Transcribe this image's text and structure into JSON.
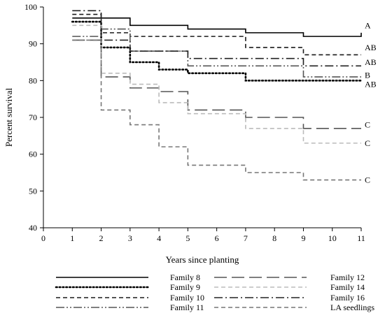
{
  "chart_data": {
    "type": "line",
    "step": true,
    "xlabel": "Years since planting",
    "ylabel": "Percent survival",
    "xlim": [
      0,
      11
    ],
    "ylim": [
      40,
      100
    ],
    "xticks": [
      0,
      1,
      2,
      3,
      4,
      5,
      6,
      7,
      8,
      9,
      10,
      11
    ],
    "yticks": [
      40,
      50,
      60,
      70,
      80,
      90,
      100
    ],
    "grid": false,
    "legend_position": "bottom",
    "series": [
      {
        "name": "Family 8",
        "color": "#000000",
        "style": "solid",
        "x": [
          1,
          3,
          5,
          7,
          9,
          11
        ],
        "y": [
          97,
          95,
          94,
          93,
          92,
          93
        ],
        "group": "A"
      },
      {
        "name": "Family 9",
        "color": "#000000",
        "style": "dotted",
        "x": [
          1,
          2,
          3,
          4,
          5,
          7,
          9,
          11
        ],
        "y": [
          96,
          89,
          85,
          83,
          82,
          80,
          80,
          80
        ],
        "group": "AB"
      },
      {
        "name": "Family 10",
        "color": "#1a1a1a",
        "style": "dashed",
        "x": [
          1,
          2,
          3,
          4,
          5,
          7,
          9,
          11
        ],
        "y": [
          98,
          93,
          92,
          92,
          92,
          89,
          87,
          87
        ],
        "group": "AB"
      },
      {
        "name": "Family 11",
        "color": "#555555",
        "style": "dashdotdot",
        "x": [
          1,
          2,
          3,
          5,
          9,
          11
        ],
        "y": [
          92,
          94,
          88,
          84,
          81,
          81
        ],
        "group": "B"
      },
      {
        "name": "Family 12",
        "color": "#555555",
        "style": "longdash",
        "x": [
          1,
          2,
          3,
          4,
          5,
          7,
          9,
          11
        ],
        "y": [
          91,
          81,
          78,
          77,
          72,
          70,
          67,
          67
        ],
        "group": "C"
      },
      {
        "name": "Family 14",
        "color": "#bbbbbb",
        "style": "dashed",
        "x": [
          1,
          2,
          3,
          4,
          5,
          7,
          9,
          11
        ],
        "y": [
          95,
          82,
          79,
          74,
          71,
          67,
          63,
          63
        ],
        "group": "C"
      },
      {
        "name": "Family 16",
        "color": "#222222",
        "style": "dashdot",
        "x": [
          1,
          2,
          3,
          5,
          9,
          11
        ],
        "y": [
          99,
          91,
          88,
          86,
          84,
          84
        ],
        "group": "AB"
      },
      {
        "name": "LA seedlings",
        "color": "#777777",
        "style": "dashed",
        "x": [
          1,
          2,
          3,
          4,
          5,
          7,
          9,
          11
        ],
        "y": [
          91,
          72,
          68,
          62,
          57,
          55,
          53,
          53
        ],
        "group": "C"
      }
    ],
    "annotations": [
      {
        "text": "A",
        "x": 11,
        "y": 95
      },
      {
        "text": "AB",
        "x": 11,
        "y": 89
      },
      {
        "text": "AB",
        "x": 11,
        "y": 85
      },
      {
        "text": "B",
        "x": 11,
        "y": 81.5
      },
      {
        "text": "AB",
        "x": 11,
        "y": 79
      },
      {
        "text": "C",
        "x": 11,
        "y": 68
      },
      {
        "text": "C",
        "x": 11,
        "y": 63
      },
      {
        "text": "C",
        "x": 11,
        "y": 53
      }
    ]
  }
}
